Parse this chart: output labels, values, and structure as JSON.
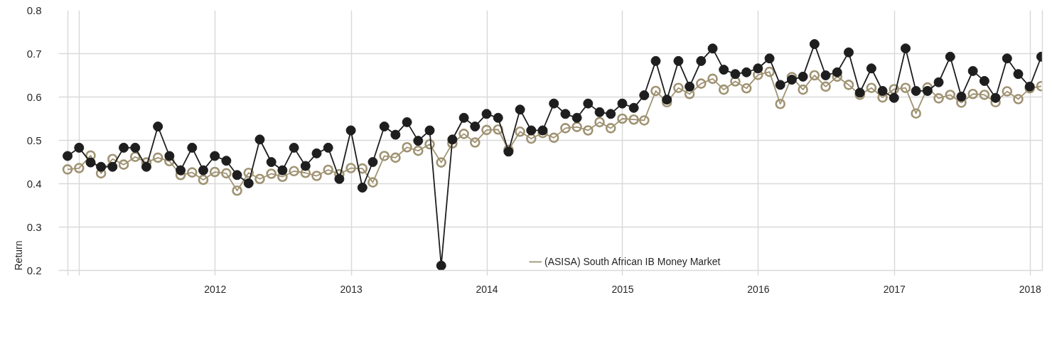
{
  "chart_data": {
    "type": "line",
    "ylabel": "Return",
    "x": [
      "2010-11-30",
      "2010-12-31",
      "2011-01-31",
      "2011-02-28",
      "2011-03-31",
      "2011-04-30",
      "2011-05-31",
      "2011-06-30",
      "2011-07-31",
      "2011-08-31",
      "2011-09-30",
      "2011-10-31",
      "2011-11-30",
      "2011-12-31",
      "2012-01-31",
      "2012-02-29",
      "2012-03-31",
      "2012-04-30",
      "2012-05-31",
      "2012-06-30",
      "2012-07-31",
      "2012-08-31",
      "2012-09-30",
      "2012-10-31",
      "2012-11-30",
      "2012-12-31",
      "2013-01-31",
      "2013-02-28",
      "2013-03-31",
      "2013-04-30",
      "2013-05-31",
      "2013-06-30",
      "2013-07-31",
      "2013-08-31",
      "2013-09-30",
      "2013-10-31",
      "2013-11-30",
      "2013-12-31",
      "2014-01-31",
      "2014-02-28",
      "2014-03-31",
      "2014-04-30",
      "2014-05-31",
      "2014-06-30",
      "2014-07-31",
      "2014-08-31",
      "2014-09-30",
      "2014-10-31",
      "2014-11-30",
      "2014-12-31",
      "2015-01-31",
      "2015-02-28",
      "2015-03-31",
      "2015-04-30",
      "2015-05-31",
      "2015-06-30",
      "2015-07-31",
      "2015-08-31",
      "2015-09-30",
      "2015-10-31",
      "2015-11-30",
      "2015-12-31",
      "2016-01-31",
      "2016-02-29",
      "2016-03-31",
      "2016-04-30",
      "2016-05-31",
      "2016-06-30",
      "2016-07-31",
      "2016-08-31",
      "2016-09-30",
      "2016-10-31",
      "2016-11-30",
      "2016-12-31",
      "2017-01-31",
      "2017-02-28",
      "2017-03-31",
      "2017-04-30",
      "2017-05-31",
      "2017-06-30",
      "2017-07-31",
      "2017-08-31",
      "2017-09-30",
      "2017-10-31",
      "2017-11-30",
      "2017-12-31",
      "2018-01-31"
    ],
    "series": [
      {
        "color": "#1e1e1e",
        "marker": "circle",
        "values": [
          0.464,
          0.483,
          0.449,
          0.439,
          0.439,
          0.483,
          0.483,
          0.439,
          0.532,
          0.464,
          0.431,
          0.483,
          0.431,
          0.464,
          0.453,
          0.42,
          0.401,
          0.502,
          0.45,
          0.431,
          0.483,
          0.441,
          0.47,
          0.483,
          0.411,
          0.523,
          0.391,
          0.45,
          0.532,
          0.513,
          0.542,
          0.499,
          0.523,
          0.211,
          0.502,
          0.552,
          0.532,
          0.561,
          0.552,
          0.474,
          0.571,
          0.523,
          0.523,
          0.585,
          0.561,
          0.552,
          0.585,
          0.565,
          0.561,
          0.585,
          0.575,
          0.604,
          0.683,
          0.594,
          0.683,
          0.624,
          0.683,
          0.712,
          0.663,
          0.653,
          0.657,
          0.666,
          0.689,
          0.628,
          0.64,
          0.647,
          0.722,
          0.65,
          0.657,
          0.703,
          0.61,
          0.666,
          0.614,
          0.598,
          0.712,
          0.614,
          0.614,
          0.634,
          0.693,
          0.601,
          0.66,
          0.637,
          0.598,
          0.689,
          0.653,
          0.624,
          0.693
        ]
      },
      {
        "name": "(ASISA) South African IB Money Market",
        "color": "#a09373",
        "marker": "circle",
        "values": [
          0.433,
          0.436,
          0.465,
          0.424,
          0.457,
          0.444,
          0.462,
          0.449,
          0.46,
          0.452,
          0.42,
          0.426,
          0.409,
          0.427,
          0.424,
          0.384,
          0.425,
          0.411,
          0.423,
          0.416,
          0.429,
          0.425,
          0.418,
          0.432,
          0.422,
          0.436,
          0.435,
          0.403,
          0.464,
          0.46,
          0.484,
          0.476,
          0.491,
          0.449,
          0.493,
          0.515,
          0.495,
          0.524,
          0.525,
          0.478,
          0.52,
          0.504,
          0.517,
          0.506,
          0.528,
          0.531,
          0.523,
          0.542,
          0.528,
          0.55,
          0.548,
          0.546,
          0.614,
          0.588,
          0.621,
          0.607,
          0.631,
          0.642,
          0.617,
          0.636,
          0.62,
          0.651,
          0.658,
          0.584,
          0.646,
          0.617,
          0.65,
          0.624,
          0.647,
          0.628,
          0.605,
          0.621,
          0.599,
          0.618,
          0.621,
          0.562,
          0.622,
          0.597,
          0.605,
          0.587,
          0.607,
          0.605,
          0.588,
          0.613,
          0.595,
          0.62,
          0.625
        ]
      }
    ],
    "xlim": [
      "2010-11-06",
      "2018-02-03"
    ],
    "xticks": [
      {
        "value": "2010-12-01",
        "label": null
      },
      {
        "value": "2011-01-01",
        "label": null
      },
      {
        "value": "2012-01-01",
        "label": "2012"
      },
      {
        "value": "2013-01-01",
        "label": "2013"
      },
      {
        "value": "2014-01-01",
        "label": "2014"
      },
      {
        "value": "2015-01-01",
        "label": "2015"
      },
      {
        "value": "2016-01-01",
        "label": "2016"
      },
      {
        "value": "2017-01-01",
        "label": "2017"
      },
      {
        "value": "2018-01-01",
        "label": "2018"
      }
    ],
    "ylim": [
      0.2,
      0.8
    ],
    "yticks": [
      0.2,
      0.3,
      0.4,
      0.5,
      0.6,
      0.7,
      0.8
    ],
    "grid": true,
    "legend": "bottom",
    "line_style": "solid"
  }
}
